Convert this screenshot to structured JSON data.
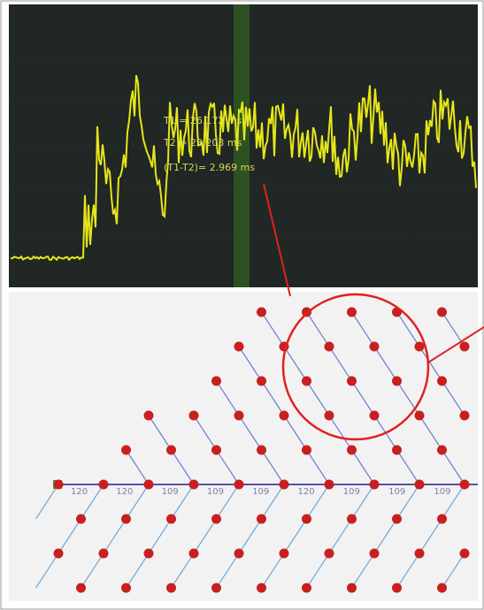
{
  "scope": {
    "readouts": [
      "T1 = 26.172 ms",
      "T2 = 23.203 ms",
      "(T1-T2)= 2.969 ms"
    ]
  },
  "diagram": {
    "baseline_labels": [
      "120",
      "120",
      "109",
      "109",
      "109",
      "120",
      "109",
      "109",
      "109"
    ]
  }
}
